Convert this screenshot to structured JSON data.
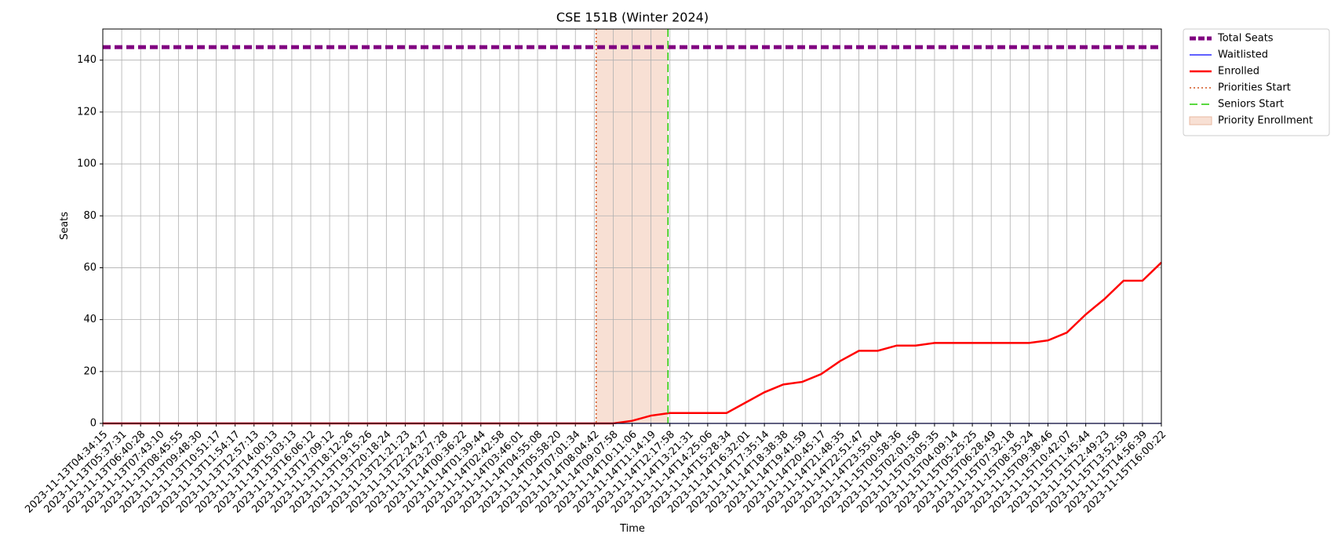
{
  "chart_data": {
    "type": "line",
    "title": "CSE 151B (Winter 2024)",
    "xlabel": "Time",
    "ylabel": "Seats",
    "categories": [
      "2023-11-13T04:34:15",
      "2023-11-13T05:37:31",
      "2023-11-13T06:40:28",
      "2023-11-13T07:43:10",
      "2023-11-13T08:45:55",
      "2023-11-13T09:48:30",
      "2023-11-13T10:51:17",
      "2023-11-13T11:54:17",
      "2023-11-13T12:57:13",
      "2023-11-13T14:00:13",
      "2023-11-13T15:03:13",
      "2023-11-13T16:06:12",
      "2023-11-13T17:09:12",
      "2023-11-13T18:12:26",
      "2023-11-13T19:15:26",
      "2023-11-13T20:18:24",
      "2023-11-13T21:21:23",
      "2023-11-13T22:24:27",
      "2023-11-13T23:27:28",
      "2023-11-14T00:36:22",
      "2023-11-14T01:39:44",
      "2023-11-14T02:42:58",
      "2023-11-14T03:46:01",
      "2023-11-14T04:55:08",
      "2023-11-14T05:58:20",
      "2023-11-14T07:01:34",
      "2023-11-14T08:04:42",
      "2023-11-14T09:07:58",
      "2023-11-14T10:11:06",
      "2023-11-14T11:14:19",
      "2023-11-14T12:17:58",
      "2023-11-14T13:21:31",
      "2023-11-14T14:25:06",
      "2023-11-14T15:28:34",
      "2023-11-14T16:32:01",
      "2023-11-14T17:35:14",
      "2023-11-14T18:38:38",
      "2023-11-14T19:41:59",
      "2023-11-14T20:45:17",
      "2023-11-14T21:48:35",
      "2023-11-14T22:51:47",
      "2023-11-14T23:55:04",
      "2023-11-15T00:58:36",
      "2023-11-15T02:01:58",
      "2023-11-15T03:05:35",
      "2023-11-15T04:09:14",
      "2023-11-15T05:25:25",
      "2023-11-15T06:28:49",
      "2023-11-15T07:32:18",
      "2023-11-15T08:35:24",
      "2023-11-15T09:38:46",
      "2023-11-15T10:42:07",
      "2023-11-15T11:45:44",
      "2023-11-15T12:49:23",
      "2023-11-15T13:52:59",
      "2023-11-15T14:56:39",
      "2023-11-15T16:00:22"
    ],
    "series": [
      {
        "name": "Total Seats",
        "color": "#800080",
        "style": "dashed",
        "width": 5,
        "values": [
          145,
          145,
          145,
          145,
          145,
          145,
          145,
          145,
          145,
          145,
          145,
          145,
          145,
          145,
          145,
          145,
          145,
          145,
          145,
          145,
          145,
          145,
          145,
          145,
          145,
          145,
          145,
          145,
          145,
          145,
          145,
          145,
          145,
          145,
          145,
          145,
          145,
          145,
          145,
          145,
          145,
          145,
          145,
          145,
          145,
          145,
          145,
          145,
          145,
          145,
          145,
          145,
          145,
          145,
          145,
          145,
          145
        ]
      },
      {
        "name": "Waitlisted",
        "color": "#0000ff",
        "style": "solid",
        "width": 1.2,
        "values": [
          0,
          0,
          0,
          0,
          0,
          0,
          0,
          0,
          0,
          0,
          0,
          0,
          0,
          0,
          0,
          0,
          0,
          0,
          0,
          0,
          0,
          0,
          0,
          0,
          0,
          0,
          0,
          0,
          0,
          0,
          0,
          0,
          0,
          0,
          0,
          0,
          0,
          0,
          0,
          0,
          0,
          0,
          0,
          0,
          0,
          0,
          0,
          0,
          0,
          0,
          0,
          0,
          0,
          0,
          0,
          0,
          0
        ]
      },
      {
        "name": "Enrolled",
        "color": "#ff0000",
        "style": "solid",
        "width": 2.5,
        "values": [
          0,
          0,
          0,
          0,
          0,
          0,
          0,
          0,
          0,
          0,
          0,
          0,
          0,
          0,
          0,
          0,
          0,
          0,
          0,
          0,
          0,
          0,
          0,
          0,
          0,
          0,
          0,
          0,
          1,
          3,
          4,
          4,
          4,
          4,
          8,
          12,
          15,
          16,
          19,
          24,
          28,
          28,
          30,
          30,
          31,
          31,
          31,
          31,
          31,
          31,
          32,
          35,
          42,
          48,
          55,
          55,
          62
        ]
      }
    ],
    "markers": [
      {
        "name": "Priorities Start",
        "color": "#d2541e",
        "style": "dotted",
        "x": 26.1
      },
      {
        "name": "Seniors Start",
        "color": "#22cc00",
        "style": "dashed",
        "x": 29.9
      }
    ],
    "span": {
      "name": "Priority Enrollment",
      "color": "#f8e0d4",
      "x": [
        26.1,
        29.9
      ]
    },
    "ylim": [
      0,
      152
    ],
    "yticks": [
      0,
      20,
      40,
      60,
      80,
      100,
      120,
      140
    ],
    "grid": true,
    "legend": "outside upper right"
  }
}
